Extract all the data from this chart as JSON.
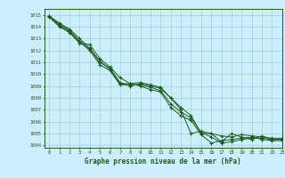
{
  "title": "Graphe pression niveau de la mer (hPa)",
  "xlim": [
    -0.5,
    23
  ],
  "ylim": [
    1003.8,
    1015.5
  ],
  "yticks": [
    1004,
    1005,
    1006,
    1007,
    1008,
    1009,
    1010,
    1011,
    1012,
    1013,
    1014,
    1015
  ],
  "xticks": [
    0,
    1,
    2,
    3,
    4,
    5,
    6,
    7,
    8,
    9,
    10,
    11,
    12,
    13,
    14,
    15,
    16,
    17,
    18,
    19,
    20,
    21,
    22,
    23
  ],
  "line_color": "#1a5c1a",
  "bg_color": "#cceeff",
  "grid_color": "#99ccbb",
  "series": [
    [
      1014.9,
      1014.2,
      1013.7,
      1012.8,
      1012.1,
      1011.0,
      1010.5,
      1009.3,
      1009.0,
      1009.2,
      1009.0,
      1008.8,
      1008.0,
      1007.2,
      1006.5,
      1005.0,
      1005.0,
      1004.3,
      1005.0,
      1004.7,
      1004.5,
      1004.8,
      1004.5,
      1004.5
    ],
    [
      1014.8,
      1014.0,
      1013.5,
      1012.6,
      1012.5,
      1011.3,
      1010.6,
      1009.7,
      1009.2,
      1009.0,
      1008.7,
      1008.5,
      1007.2,
      1006.5,
      1006.1,
      1004.9,
      1004.2,
      1004.4,
      1004.5,
      1004.6,
      1004.7,
      1004.5,
      1004.4,
      1004.4
    ],
    [
      1014.9,
      1014.1,
      1013.6,
      1012.7,
      1012.0,
      1010.8,
      1010.3,
      1009.1,
      1009.1,
      1009.1,
      1008.9,
      1008.6,
      1007.5,
      1006.8,
      1006.3,
      1005.1,
      1004.7,
      1004.2,
      1004.3,
      1004.5,
      1004.6,
      1004.6,
      1004.5,
      1004.5
    ],
    [
      1014.9,
      1014.3,
      1013.8,
      1013.0,
      1012.2,
      1011.1,
      1010.4,
      1009.2,
      1009.2,
      1009.3,
      1009.1,
      1008.9,
      1008.0,
      1007.0,
      1005.0,
      1005.2,
      1005.0,
      1004.8,
      1004.7,
      1004.9,
      1004.8,
      1004.7,
      1004.6,
      1004.6
    ]
  ]
}
